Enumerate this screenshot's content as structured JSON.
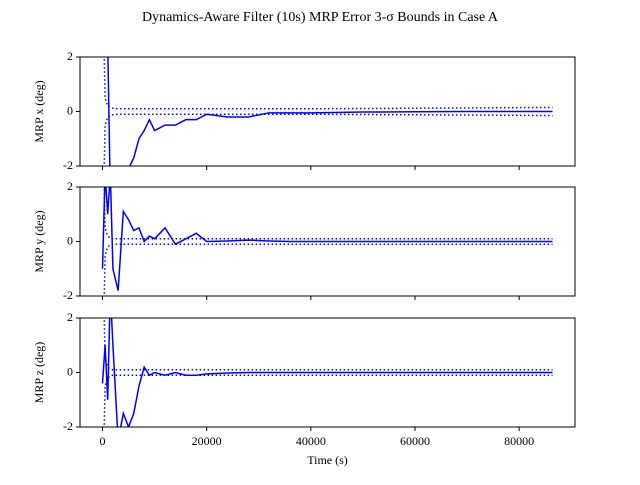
{
  "title": "Dynamics-Aware Filter (10s) MRP Error 3-σ Bounds in Case A",
  "chart_data": [
    {
      "type": "line",
      "ylabel": "MRP x (deg)",
      "ylim": [
        -2,
        2
      ],
      "yticks": [
        -2,
        0,
        2
      ],
      "xlim": [
        -4320,
        90720
      ],
      "x": [
        0,
        500,
        1000,
        1500,
        2000,
        3000,
        4000,
        5000,
        6000,
        7000,
        8000,
        9000,
        10000,
        12000,
        14000,
        16000,
        18000,
        20000,
        24000,
        28000,
        32000,
        36000,
        40000,
        50000,
        60000,
        70000,
        80000,
        86400
      ],
      "series": [
        {
          "color": "#0000ff",
          "style": "solid",
          "values": [
            4,
            3,
            2.5,
            -3,
            -3,
            -3,
            -2.3,
            -2.1,
            -1.7,
            -1.0,
            -0.7,
            -0.3,
            -0.7,
            -0.5,
            -0.5,
            -0.3,
            -0.3,
            -0.1,
            -0.2,
            -0.2,
            -0.05,
            -0.05,
            -0.05,
            -0.02,
            -0.01,
            0,
            0,
            0
          ]
        },
        {
          "color": "#0000ff",
          "style": "dotted",
          "values": [
            5,
            0.5,
            0.2,
            0.15,
            0.12,
            0.1,
            0.1,
            0.1,
            0.1,
            0.1,
            0.1,
            0.1,
            0.1,
            0.1,
            0.1,
            0.1,
            0.1,
            0.1,
            0.1,
            0.1,
            0.1,
            0.1,
            0.1,
            0.11,
            0.12,
            0.13,
            0.14,
            0.15
          ]
        },
        {
          "color": "#0000ff",
          "style": "dotted",
          "values": [
            -5,
            -0.5,
            -0.2,
            -0.15,
            -0.12,
            -0.1,
            -0.1,
            -0.1,
            -0.1,
            -0.1,
            -0.1,
            -0.1,
            -0.1,
            -0.1,
            -0.1,
            -0.1,
            -0.1,
            -0.1,
            -0.1,
            -0.1,
            -0.1,
            -0.1,
            -0.1,
            -0.11,
            -0.12,
            -0.13,
            -0.14,
            -0.15
          ]
        }
      ]
    },
    {
      "type": "line",
      "ylabel": "MRP y (deg)",
      "ylim": [
        -2,
        2
      ],
      "yticks": [
        -2,
        0,
        2
      ],
      "xlim": [
        -4320,
        90720
      ],
      "x": [
        0,
        500,
        1000,
        1500,
        2000,
        3000,
        4000,
        5000,
        6000,
        7000,
        8000,
        9000,
        10000,
        12000,
        14000,
        16000,
        18000,
        20000,
        24000,
        28000,
        32000,
        36000,
        40000,
        50000,
        60000,
        70000,
        80000,
        86400
      ],
      "series": [
        {
          "color": "#0000ff",
          "style": "solid",
          "values": [
            -1,
            2.5,
            1,
            2.5,
            -1,
            -1.8,
            1.1,
            0.8,
            0.4,
            0.5,
            0,
            0.2,
            0.1,
            0.5,
            -0.1,
            0.1,
            0.3,
            0,
            0.02,
            0.05,
            0.02,
            0,
            0,
            0,
            0,
            0,
            0,
            0
          ]
        },
        {
          "color": "#0000ff",
          "style": "dotted",
          "values": [
            5,
            0.5,
            0.2,
            0.12,
            0.1,
            0.1,
            0.1,
            0.1,
            0.1,
            0.1,
            0.1,
            0.1,
            0.1,
            0.1,
            0.1,
            0.1,
            0.1,
            0.1,
            0.1,
            0.1,
            0.1,
            0.1,
            0.1,
            0.1,
            0.1,
            0.1,
            0.1,
            0.1
          ]
        },
        {
          "color": "#0000ff",
          "style": "dotted",
          "values": [
            -5,
            -0.5,
            -0.2,
            -0.12,
            -0.1,
            -0.1,
            -0.1,
            -0.1,
            -0.1,
            -0.1,
            -0.1,
            -0.1,
            -0.1,
            -0.1,
            -0.1,
            -0.1,
            -0.1,
            -0.1,
            -0.1,
            -0.1,
            -0.1,
            -0.1,
            -0.1,
            -0.1,
            -0.1,
            -0.1,
            -0.1,
            -0.1
          ]
        }
      ]
    },
    {
      "type": "line",
      "ylabel": "MRP z (deg)",
      "xlabel": "Time (s)",
      "ylim": [
        -2,
        2
      ],
      "yticks": [
        -2,
        0,
        2
      ],
      "xlim": [
        -4320,
        90720
      ],
      "xticks": [
        0,
        20000,
        40000,
        60000,
        80000
      ],
      "x": [
        0,
        500,
        1000,
        1500,
        2000,
        3000,
        4000,
        5000,
        6000,
        7000,
        8000,
        9000,
        10000,
        12000,
        14000,
        16000,
        18000,
        20000,
        24000,
        28000,
        32000,
        36000,
        40000,
        50000,
        60000,
        70000,
        80000,
        86400
      ],
      "series": [
        {
          "color": "#0000ff",
          "style": "solid",
          "values": [
            -0.4,
            1,
            -1,
            3,
            1,
            -2.5,
            -1.5,
            -2,
            -1.5,
            -0.5,
            0.2,
            -0.1,
            0,
            -0.1,
            0,
            -0.1,
            -0.1,
            -0.05,
            -0.02,
            0,
            0,
            0,
            0,
            0,
            0,
            0,
            0,
            0
          ]
        },
        {
          "color": "#0000ff",
          "style": "dotted",
          "values": [
            5,
            0.5,
            0.2,
            0.12,
            0.1,
            0.1,
            0.1,
            0.1,
            0.1,
            0.1,
            0.1,
            0.1,
            0.1,
            0.1,
            0.1,
            0.1,
            0.1,
            0.1,
            0.1,
            0.1,
            0.1,
            0.1,
            0.1,
            0.1,
            0.1,
            0.1,
            0.1,
            0.1
          ]
        },
        {
          "color": "#0000ff",
          "style": "dotted",
          "values": [
            -5,
            -0.5,
            -0.2,
            -0.12,
            -0.1,
            -0.1,
            -0.1,
            -0.1,
            -0.1,
            -0.1,
            -0.1,
            -0.1,
            -0.1,
            -0.1,
            -0.1,
            -0.1,
            -0.1,
            -0.1,
            -0.1,
            -0.1,
            -0.1,
            -0.1,
            -0.1,
            -0.1,
            -0.1,
            -0.1,
            -0.1,
            -0.1
          ]
        }
      ]
    }
  ]
}
